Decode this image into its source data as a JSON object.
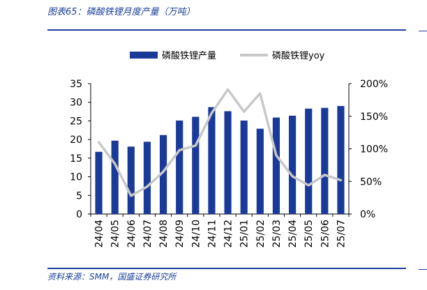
{
  "header": {
    "title": "图表65：磷酸铁锂月度产量（万吨）"
  },
  "footer": {
    "source": "资料来源：SMM，国盛证券研究所"
  },
  "colors": {
    "bar": "#1a3a9a",
    "line": "#c8c8c8",
    "accent": "#1a3f99"
  },
  "chart_data": {
    "type": "bar",
    "title": "",
    "categories": [
      "24/04",
      "24/05",
      "24/06",
      "24/07",
      "24/08",
      "24/09",
      "24/10",
      "24/11",
      "24/12",
      "25/01",
      "25/02",
      "25/03",
      "25/04",
      "25/05",
      "25/06",
      "25/07"
    ],
    "series": [
      {
        "name": "磷酸铁锂产量",
        "type": "bar",
        "axis": "left",
        "values": [
          16.7,
          19.7,
          18.1,
          19.4,
          21.2,
          25.1,
          26.1,
          28.7,
          27.6,
          25.1,
          22.9,
          25.9,
          26.4,
          28.3,
          28.5,
          29.0
        ]
      },
      {
        "name": "磷酸铁锂yoy",
        "type": "line",
        "axis": "right",
        "values": [
          110,
          77,
          28,
          42,
          65,
          98,
          105,
          155,
          191,
          157,
          185,
          90,
          58,
          44,
          60,
          52
        ]
      }
    ],
    "ylim": [
      0,
      35
    ],
    "yticks": [
      "0",
      "5",
      "10",
      "15",
      "20",
      "25",
      "30",
      "35"
    ],
    "y2lim": [
      0,
      200
    ],
    "y2ticks": [
      "0%",
      "50%",
      "100%",
      "150%",
      "200%"
    ],
    "legend": "top"
  }
}
